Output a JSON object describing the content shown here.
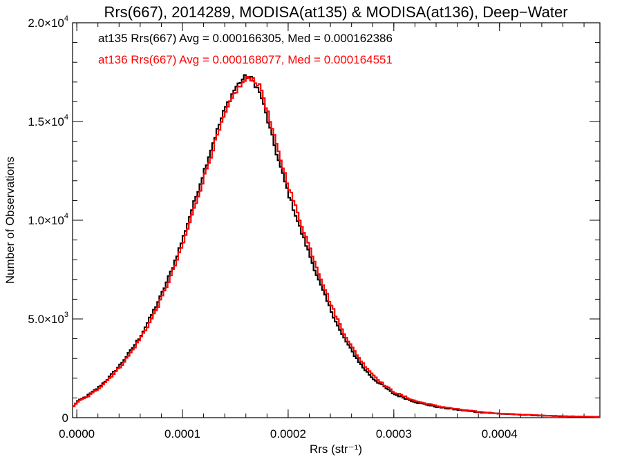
{
  "chart_data": {
    "type": "line",
    "title": "Rrs(667), 2014289, MODISA(at135) & MODISA(at136), Deep−Water",
    "xlabel": "Rrs (str⁻¹)",
    "ylabel": "Number of Observations",
    "xlim": [
      -4e-06,
      0.000495
    ],
    "ylim": [
      0,
      20000
    ],
    "grid": false,
    "x_ticks": [
      {
        "value": 0.0,
        "label": "0.0000"
      },
      {
        "value": 0.0001,
        "label": "0.0001"
      },
      {
        "value": 0.0002,
        "label": "0.0002"
      },
      {
        "value": 0.0003,
        "label": "0.0003"
      },
      {
        "value": 0.0004,
        "label": "0.0004"
      }
    ],
    "y_ticks": [
      {
        "value": 0,
        "mant": "0",
        "exp": ""
      },
      {
        "value": 5000,
        "mant": "5.0×10",
        "exp": "3"
      },
      {
        "value": 10000,
        "mant": "1.0×10",
        "exp": "4"
      },
      {
        "value": 15000,
        "mant": "1.5×10",
        "exp": "4"
      },
      {
        "value": 20000,
        "mant": "2.0×10",
        "exp": "4"
      }
    ],
    "x": [
      -4e-06,
      0.0,
      1e-05,
      2e-05,
      3e-05,
      4e-05,
      5e-05,
      6e-05,
      7e-05,
      8e-05,
      9e-05,
      0.0001,
      0.00011,
      0.00012,
      0.00013,
      0.00014,
      0.00015,
      0.000158,
      0.000162,
      0.000166,
      0.00017,
      0.000175,
      0.00018,
      0.00019,
      0.0002,
      0.00021,
      0.00022,
      0.00023,
      0.00024,
      0.00025,
      0.00026,
      0.00027,
      0.00028,
      0.00029,
      0.0003,
      0.00032,
      0.00034,
      0.00036,
      0.00038,
      0.0004,
      0.00042,
      0.00044,
      0.00046,
      0.00048,
      0.000495
    ],
    "series": [
      {
        "name": "at135",
        "color": "#000000",
        "values": [
          500,
          800,
          1100,
          1500,
          2000,
          2600,
          3300,
          4100,
          5100,
          6200,
          7500,
          9000,
          10700,
          12400,
          14100,
          15600,
          16700,
          17200,
          17300,
          17100,
          16800,
          16200,
          15200,
          13200,
          11400,
          9800,
          8300,
          6800,
          5500,
          4300,
          3400,
          2600,
          2000,
          1600,
          1200,
          800,
          550,
          400,
          280,
          200,
          150,
          100,
          70,
          50,
          40
        ]
      },
      {
        "name": "at136",
        "color": "#ff0000",
        "values": [
          480,
          780,
          1050,
          1450,
          1950,
          2500,
          3200,
          4000,
          4900,
          6000,
          7300,
          8700,
          10400,
          12100,
          13800,
          15300,
          16500,
          17000,
          17200,
          17200,
          17000,
          16600,
          15600,
          13600,
          11800,
          10200,
          8700,
          7200,
          5800,
          4600,
          3600,
          2800,
          2200,
          1700,
          1300,
          850,
          600,
          430,
          300,
          210,
          160,
          110,
          75,
          55,
          40
        ]
      }
    ],
    "annotations": [
      {
        "text": "at135 Rrs(667) Avg = 0.000166305, Med = 0.000162386",
        "color": "#000000"
      },
      {
        "text": "at136 Rrs(667) Avg = 0.000168077, Med = 0.000164551",
        "color": "#ff0000"
      }
    ]
  }
}
